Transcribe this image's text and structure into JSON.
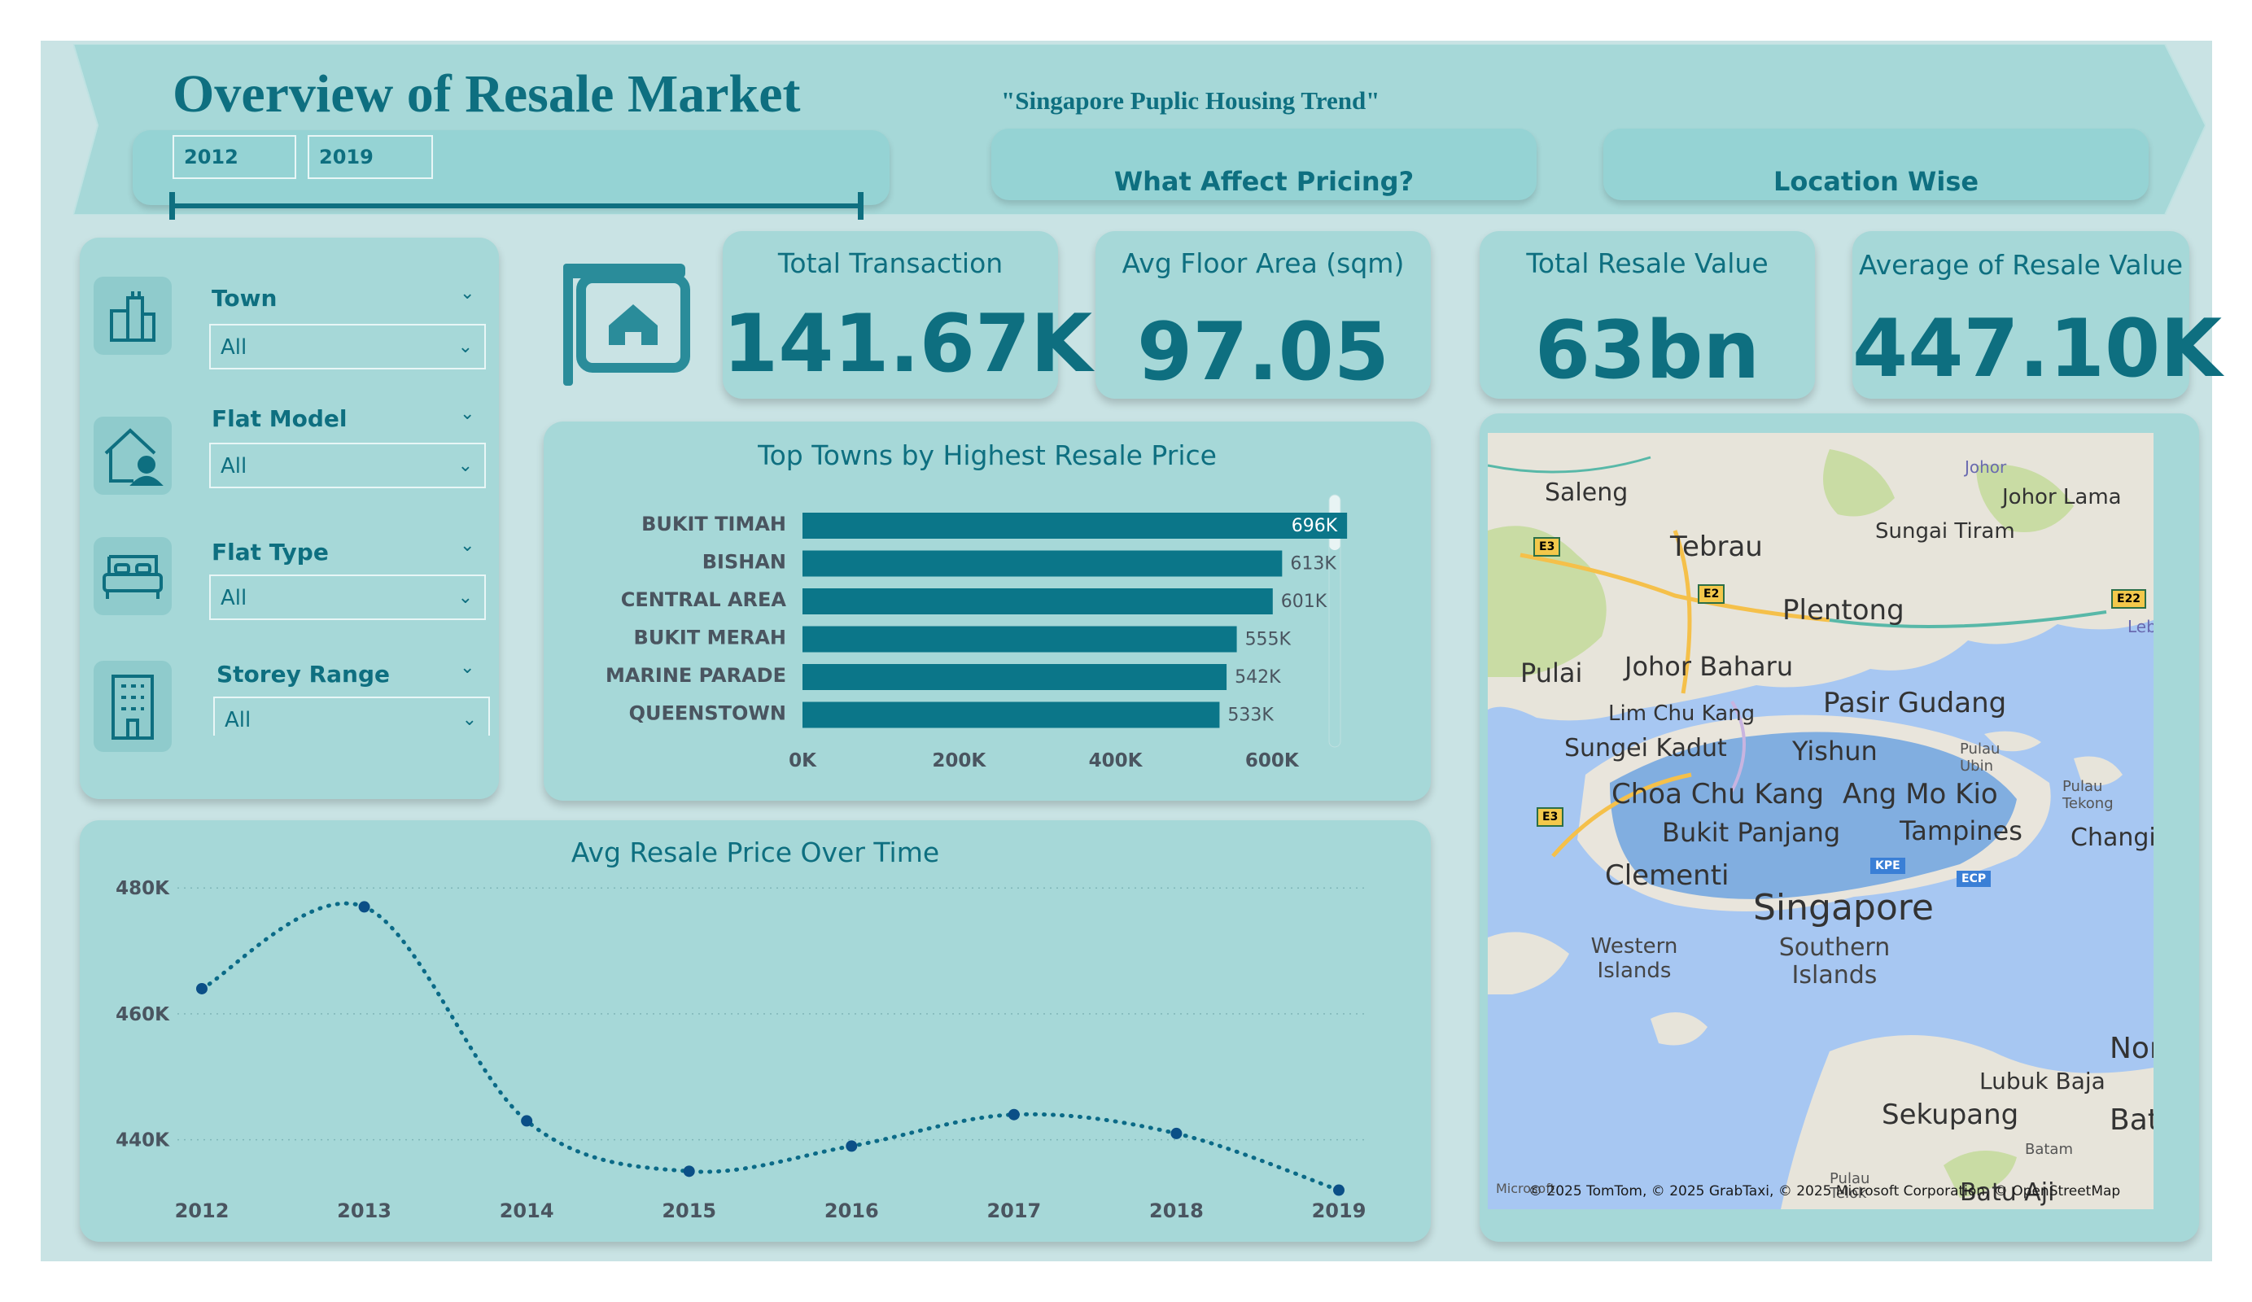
{
  "header": {
    "title": "Overview of Resale Market",
    "subtitle": "\"Singapore Puplic Housing Trend\"",
    "year_from": "2012",
    "year_to": "2019",
    "nav_pricing": "What Affect Pricing?",
    "nav_location": "Location Wise"
  },
  "filters": {
    "town": {
      "label": "Town",
      "value": "All"
    },
    "flat_model": {
      "label": "Flat Model",
      "value": "All"
    },
    "flat_type": {
      "label": "Flat Type",
      "value": "All"
    },
    "storey_range": {
      "label": "Storey Range",
      "value": "All"
    }
  },
  "kpis": {
    "total_transaction": {
      "label": "Total Transaction",
      "value": "141.67K"
    },
    "avg_floor_area": {
      "label": "Avg Floor Area (sqm)",
      "value": "97.05"
    },
    "total_resale_value": {
      "label": "Total Resale Value",
      "value": "63bn"
    },
    "average_resale_value": {
      "label": "Average of Resale Value",
      "value": "447.10K"
    }
  },
  "colors": {
    "accent": "#0e6f80",
    "bar": "#0b7689",
    "line": "#0b6a87",
    "card": "#a6d8d8"
  },
  "chart_data": [
    {
      "type": "bar",
      "title": "Top Towns by Highest Resale Price",
      "orientation": "horizontal",
      "categories": [
        "BUKIT TIMAH",
        "BISHAN",
        "CENTRAL AREA",
        "BUKIT MERAH",
        "MARINE PARADE",
        "QUEENSTOWN"
      ],
      "values": [
        696,
        613,
        601,
        555,
        542,
        533
      ],
      "data_labels": [
        "696K",
        "613K",
        "601K",
        "555K",
        "542K",
        "533K"
      ],
      "xticks": [
        "0K",
        "200K",
        "400K",
        "600K"
      ],
      "xlim": [
        0,
        700
      ],
      "unit": "K"
    },
    {
      "type": "line",
      "title": "Avg Resale Price Over Time",
      "x": [
        "2012",
        "2013",
        "2014",
        "2015",
        "2016",
        "2017",
        "2018",
        "2019"
      ],
      "y": [
        464,
        477,
        443,
        435,
        439,
        444,
        441,
        432
      ],
      "yticks": [
        "480K",
        "460K",
        "440K"
      ],
      "ytick_values": [
        480,
        460,
        440
      ],
      "ylim": [
        430,
        483
      ],
      "grid": true,
      "line_style": "dotted"
    }
  ],
  "map": {
    "labels": [
      "Saleng",
      "Johor",
      "Johor Lama",
      "Sungai Tiram",
      "Tebrau",
      "Plentong",
      "Pulai",
      "Johor Baharu",
      "Pasir Gudang",
      "Lim Chu Kang",
      "Sungei Kadut",
      "Yishun",
      "Pulau Ubin",
      "Pulau Tekong",
      "Choa Chu Kang",
      "Ang Mo Kio",
      "Bukit Panjang",
      "Tampines",
      "Changi",
      "Clementi",
      "Singapore",
      "Western Islands",
      "Southern Islands",
      "Lubuk Baja",
      "Sekupang",
      "Batam",
      "Nor",
      "Batar",
      "Lebar",
      "Batu Aji",
      "Pulau Telok"
    ],
    "road_shields": [
      "E3",
      "E2",
      "E22",
      "E3",
      "KPE",
      "ECP"
    ],
    "attribution": "© 2025 TomTom, © 2025 GrabTaxi, © 2025 Microsoft Corporation, © OpenStreetMap",
    "logo": "Microsoft"
  }
}
